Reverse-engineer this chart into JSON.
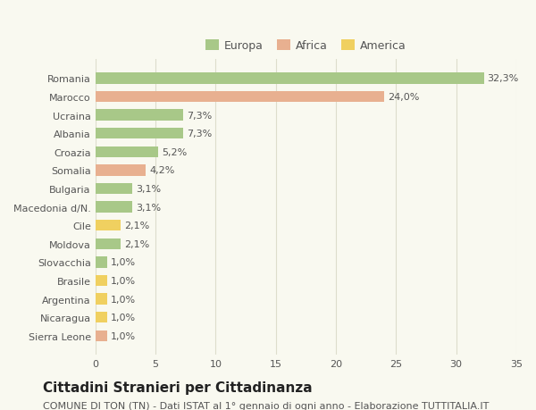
{
  "categories": [
    "Romania",
    "Marocco",
    "Ucraina",
    "Albania",
    "Croazia",
    "Somalia",
    "Bulgaria",
    "Macedonia d/N.",
    "Cile",
    "Moldova",
    "Slovacchia",
    "Brasile",
    "Argentina",
    "Nicaragua",
    "Sierra Leone"
  ],
  "values": [
    32.3,
    24.0,
    7.3,
    7.3,
    5.2,
    4.2,
    3.1,
    3.1,
    2.1,
    2.1,
    1.0,
    1.0,
    1.0,
    1.0,
    1.0
  ],
  "labels": [
    "32,3%",
    "24,0%",
    "7,3%",
    "7,3%",
    "5,2%",
    "4,2%",
    "3,1%",
    "3,1%",
    "2,1%",
    "2,1%",
    "1,0%",
    "1,0%",
    "1,0%",
    "1,0%",
    "1,0%"
  ],
  "continents": [
    "Europa",
    "Africa",
    "Europa",
    "Europa",
    "Europa",
    "Africa",
    "Europa",
    "Europa",
    "America",
    "Europa",
    "Europa",
    "America",
    "America",
    "America",
    "Africa"
  ],
  "colors": {
    "Europa": "#a8c888",
    "Africa": "#e8b090",
    "America": "#f0d060"
  },
  "legend_colors": {
    "Europa": "#a8c888",
    "Africa": "#e8b090",
    "America": "#f0d060"
  },
  "title": "Cittadini Stranieri per Cittadinanza",
  "subtitle": "COMUNE DI TON (TN) - Dati ISTAT al 1° gennaio di ogni anno - Elaborazione TUTTITALIA.IT",
  "xlim": [
    0,
    35
  ],
  "xticks": [
    0,
    5,
    10,
    15,
    20,
    25,
    30,
    35
  ],
  "background_color": "#f9f9f0",
  "grid_color": "#ddddcc",
  "bar_height": 0.6,
  "title_fontsize": 11,
  "subtitle_fontsize": 8,
  "label_fontsize": 8,
  "tick_fontsize": 8,
  "legend_fontsize": 9
}
